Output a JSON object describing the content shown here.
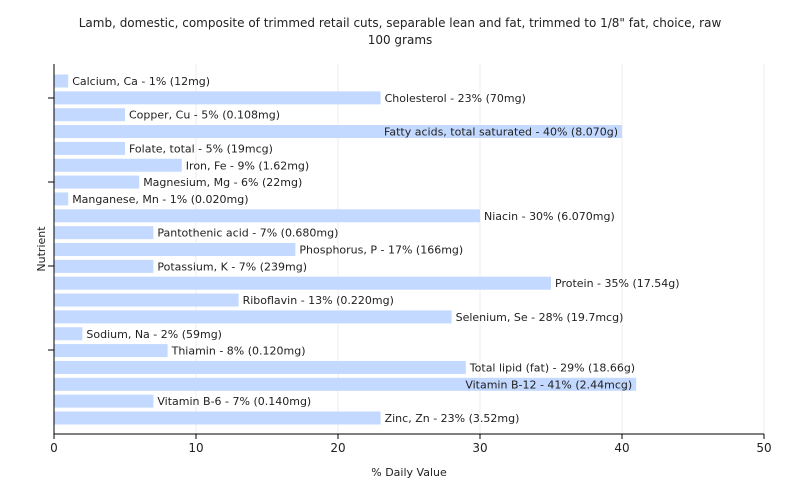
{
  "chart_data": {
    "type": "bar",
    "orientation": "horizontal",
    "title_line1": "Lamb, domestic, composite of trimmed retail cuts, separable lean and fat, trimmed to 1/8\" fat, choice, raw",
    "title_line2": "100 grams",
    "xlabel": "% Daily Value",
    "ylabel": "Nutrient",
    "xlim": [
      0,
      50
    ],
    "xticks": [
      "0",
      "10",
      "20",
      "30",
      "40",
      "50"
    ],
    "grid": true,
    "bar_color": "#c3d9ff",
    "categories": [
      "Calcium, Ca",
      "Cholesterol",
      "Copper, Cu",
      "Fatty acids, total saturated",
      "Folate, total",
      "Iron, Fe",
      "Magnesium, Mg",
      "Manganese, Mn",
      "Niacin",
      "Pantothenic acid",
      "Phosphorus, P",
      "Potassium, K",
      "Protein",
      "Riboflavin",
      "Selenium, Se",
      "Sodium, Na",
      "Thiamin",
      "Total lipid (fat)",
      "Vitamin B-12",
      "Vitamin B-6",
      "Zinc, Zn"
    ],
    "values": [
      1,
      23,
      5,
      40,
      5,
      9,
      6,
      1,
      30,
      7,
      17,
      7,
      35,
      13,
      28,
      2,
      8,
      29,
      41,
      7,
      23
    ],
    "labels": [
      "Calcium, Ca - 1% (12mg)",
      "Cholesterol - 23% (70mg)",
      "Copper, Cu - 5% (0.108mg)",
      "Fatty acids, total saturated - 40% (8.070g)",
      "Folate, total - 5% (19mcg)",
      "Iron, Fe - 9% (1.62mg)",
      "Magnesium, Mg - 6% (22mg)",
      "Manganese, Mn - 1% (0.020mg)",
      "Niacin - 30% (6.070mg)",
      "Pantothenic acid - 7% (0.680mg)",
      "Phosphorus, P - 17% (166mg)",
      "Potassium, K - 7% (239mg)",
      "Protein - 35% (17.54g)",
      "Riboflavin - 13% (0.220mg)",
      "Selenium, Se - 28% (19.7mcg)",
      "Sodium, Na - 2% (59mg)",
      "Thiamin - 8% (0.120mg)",
      "Total lipid (fat) - 29% (18.66g)",
      "Vitamin B-12 - 41% (2.44mcg)",
      "Vitamin B-6 - 7% (0.140mg)",
      "Zinc, Zn - 23% (3.52mg)"
    ]
  }
}
